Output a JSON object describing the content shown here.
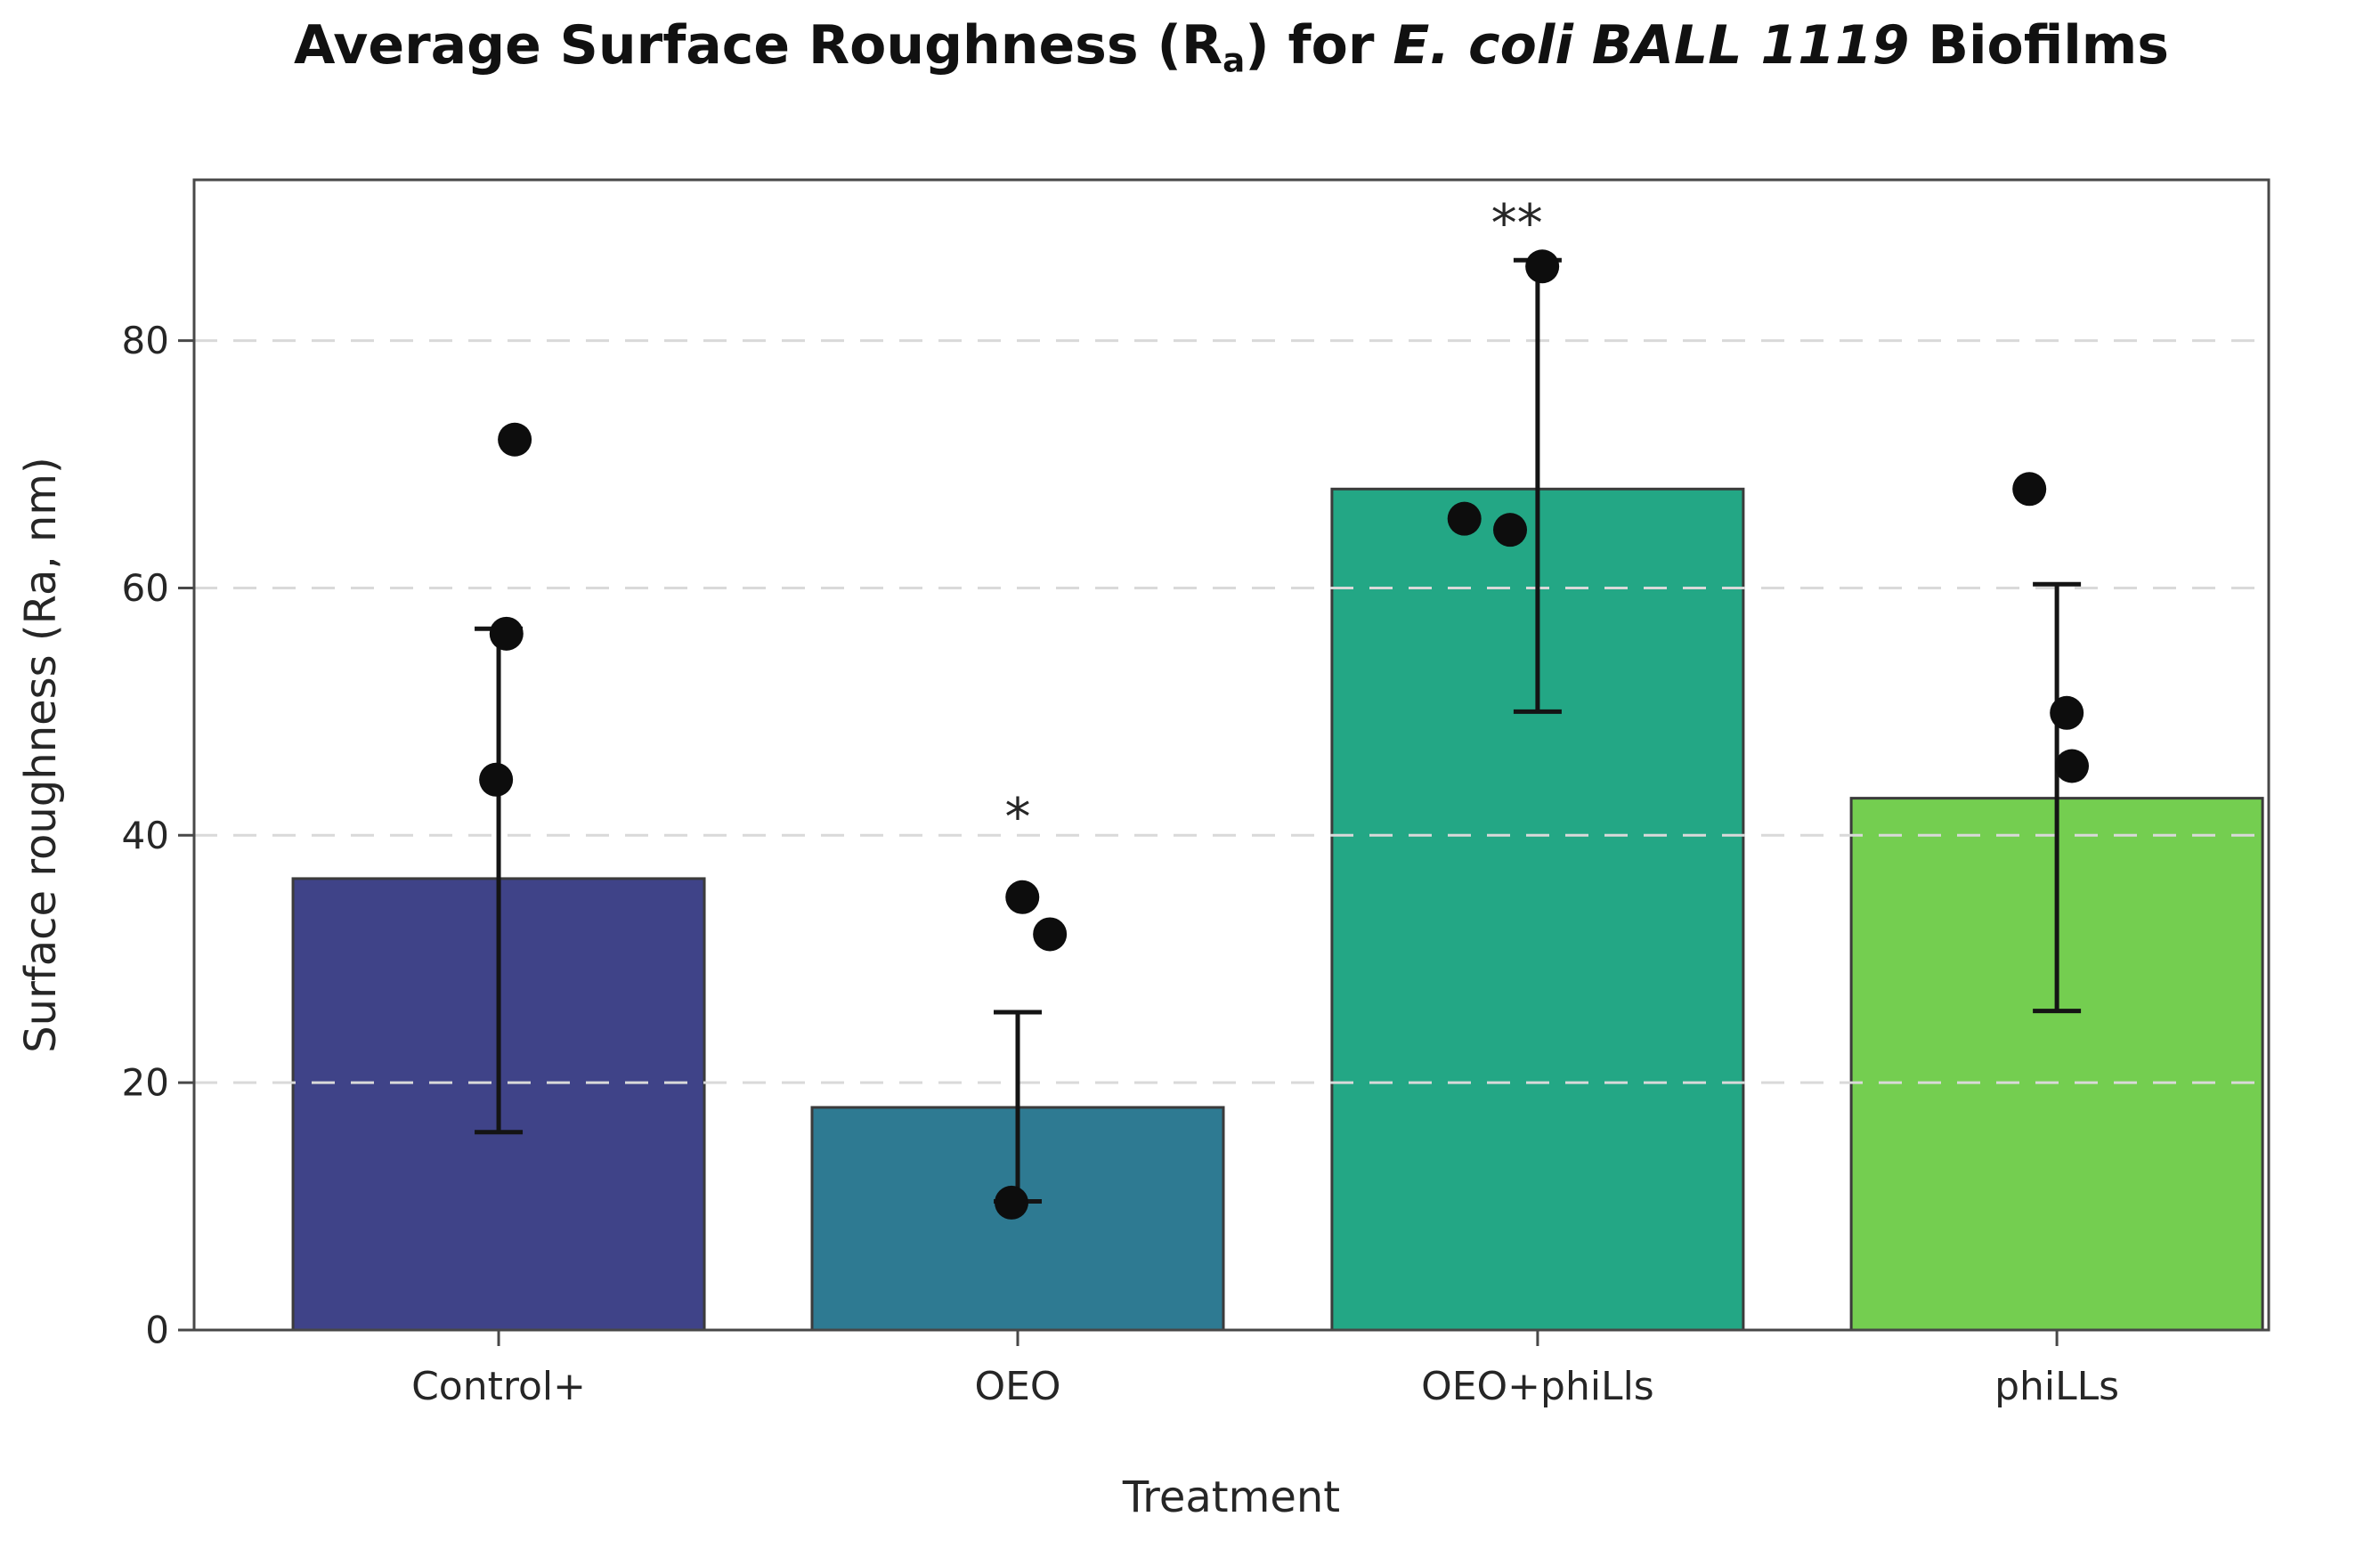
{
  "title": {
    "text_prefix": "Average Surface Roughness (R",
    "subscript": "a",
    "text_mid": ") for ",
    "text_emphasis": "E. coli BALL 1119",
    "text_suffix": " Biofilms"
  },
  "chart_data": {
    "type": "bar",
    "title": "Average Surface Roughness (Ra) for E. coli BALL 1119 Biofilms",
    "xlabel": "Treatment",
    "ylabel": "Surface roughness (Ra, nm)",
    "ylim": [
      0,
      93
    ],
    "yticks": [
      0,
      20,
      40,
      60,
      80
    ],
    "grid": "horizontal dashed light-gray, drawn above bars",
    "legend_position": "none",
    "categories": [
      "Control+",
      "OEO",
      "OEO+phiLls",
      "phiLLs"
    ],
    "series": [
      {
        "name": "mean surface roughness (Ra, nm)",
        "values": [
          36.5,
          18,
          68,
          43
        ]
      }
    ],
    "bars": [
      {
        "label": "Control+",
        "value": 36.5,
        "color": "#3f4388",
        "error_low": 16.0,
        "error_high": 56.7,
        "points": [
          {
            "y": 72.0,
            "dx": 0.031
          },
          {
            "y": 56.3,
            "dx": 0.015
          },
          {
            "y": 44.5,
            "dx": -0.005
          }
        ],
        "significance": null
      },
      {
        "label": "OEO",
        "value": 18.0,
        "color": "#2e7a92",
        "error_low": 10.4,
        "error_high": 25.7,
        "points": [
          {
            "y": 35.0,
            "dx": 0.009
          },
          {
            "y": 32.0,
            "dx": 0.062
          },
          {
            "y": 10.3,
            "dx": -0.012
          }
        ],
        "significance": {
          "text": "*",
          "y": 41.5,
          "dx": 0
        }
      },
      {
        "label": "OEO+phiLls",
        "value": 68.0,
        "color": "#23a785",
        "error_low": 50.0,
        "error_high": 86.5,
        "points": [
          {
            "y": 86.0,
            "dx": 0.009
          },
          {
            "y": 65.6,
            "dx": -0.141
          },
          {
            "y": 64.7,
            "dx": -0.053
          }
        ],
        "significance": {
          "text": "**",
          "y": 89.5,
          "dx": -0.04
        }
      },
      {
        "label": "phiLLs",
        "value": 43.0,
        "color": "#74ce50",
        "error_low": 25.8,
        "error_high": 60.3,
        "points": [
          {
            "y": 68.0,
            "dx": -0.053
          },
          {
            "y": 49.9,
            "dx": 0.019
          },
          {
            "y": 45.6,
            "dx": 0.029
          }
        ],
        "significance": null
      }
    ]
  }
}
